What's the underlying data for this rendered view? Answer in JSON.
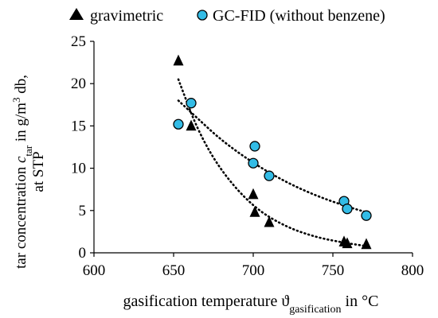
{
  "chart_data": {
    "type": "scatter",
    "xlabel": {
      "main": "gasification temperature ϑ",
      "sub": "gasification",
      "tail": " in °C"
    },
    "ylabel": {
      "line1_pre": "tar concentration ",
      "line1_var": "c",
      "line1_sub": "tar",
      "line1_mid": " in g/m",
      "line1_sup": "3",
      "line1_post": " db,",
      "line2": "at STP"
    },
    "xlim": [
      600,
      800
    ],
    "ylim": [
      0,
      25
    ],
    "xticks": [
      600,
      650,
      700,
      750,
      800
    ],
    "yticks": [
      0,
      5,
      10,
      15,
      20,
      25
    ],
    "grid": false,
    "legend_position": "top",
    "series": [
      {
        "name": "gravimetric",
        "marker": "triangle",
        "color": "#000000",
        "points": [
          {
            "x": 653,
            "y": 22.7
          },
          {
            "x": 661,
            "y": 15.0
          },
          {
            "x": 700,
            "y": 6.9
          },
          {
            "x": 701,
            "y": 4.8
          },
          {
            "x": 710,
            "y": 3.6
          },
          {
            "x": 757,
            "y": 1.3
          },
          {
            "x": 759,
            "y": 1.1
          },
          {
            "x": 771,
            "y": 1.0
          }
        ],
        "trend": [
          {
            "x": 653,
            "y": 20.5
          },
          {
            "x": 665,
            "y": 14.5
          },
          {
            "x": 680,
            "y": 9.6
          },
          {
            "x": 700,
            "y": 5.4
          },
          {
            "x": 720,
            "y": 3.1
          },
          {
            "x": 740,
            "y": 1.8
          },
          {
            "x": 760,
            "y": 1.1
          },
          {
            "x": 771,
            "y": 0.8
          }
        ]
      },
      {
        "name": "GC-FID (without benzene)",
        "marker": "circle",
        "color": "#33bce6",
        "points": [
          {
            "x": 653,
            "y": 15.2
          },
          {
            "x": 661,
            "y": 17.7
          },
          {
            "x": 701,
            "y": 12.6
          },
          {
            "x": 700,
            "y": 10.6
          },
          {
            "x": 710,
            "y": 9.1
          },
          {
            "x": 757,
            "y": 6.1
          },
          {
            "x": 759,
            "y": 5.2
          },
          {
            "x": 771,
            "y": 4.4
          }
        ],
        "trend": [
          {
            "x": 653,
            "y": 18.0
          },
          {
            "x": 665,
            "y": 15.9
          },
          {
            "x": 680,
            "y": 13.3
          },
          {
            "x": 700,
            "y": 10.6
          },
          {
            "x": 720,
            "y": 8.4
          },
          {
            "x": 740,
            "y": 6.7
          },
          {
            "x": 760,
            "y": 5.4
          },
          {
            "x": 771,
            "y": 4.8
          }
        ]
      }
    ]
  }
}
